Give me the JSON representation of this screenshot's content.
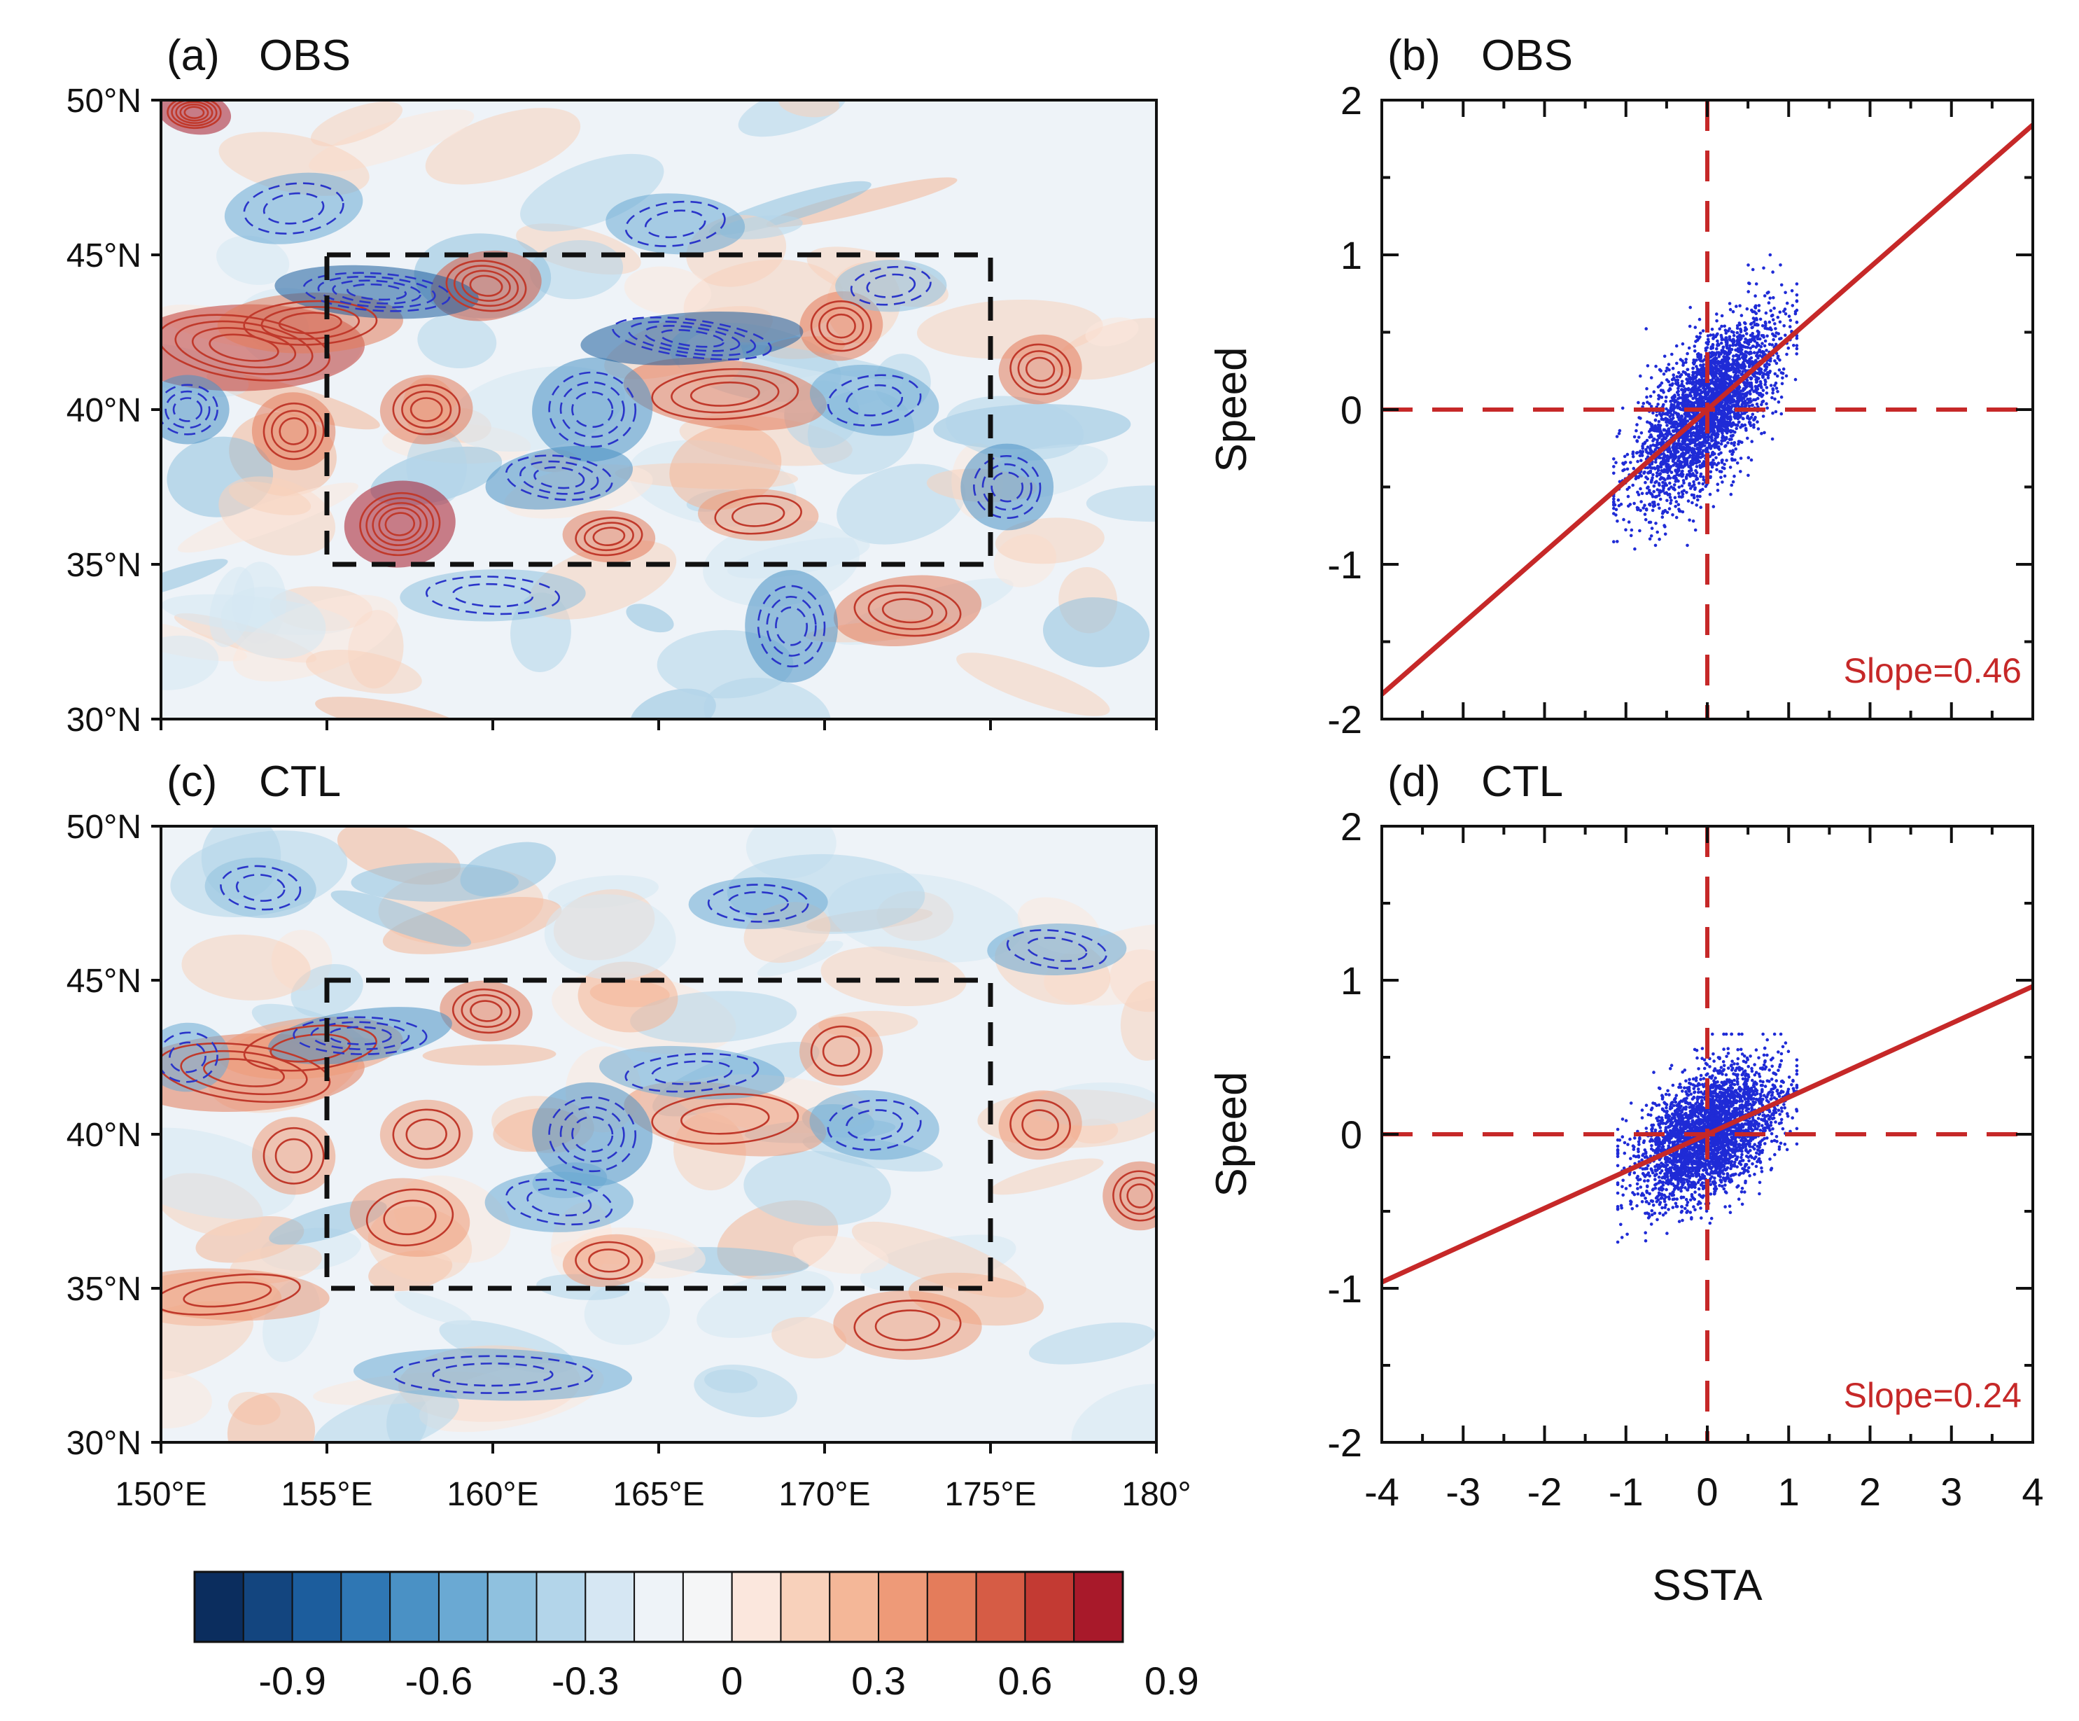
{
  "colors": {
    "positive_contour": "#c0392b",
    "negative_contour": "#2a35c9",
    "scatter_point": "#1f2bd6",
    "regression_line": "#c62828",
    "box": "#111111"
  },
  "colorbar": {
    "colors": [
      "#0b2d5e",
      "#13457f",
      "#1c5d9d",
      "#2f77b4",
      "#4a91c5",
      "#6aa9d3",
      "#8fc1df",
      "#b3d5ea",
      "#d6e7f3",
      "#eef3f8",
      "#f5f6f7",
      "#fbe7dd",
      "#f8d1bb",
      "#f4b798",
      "#ee9a78",
      "#e47c5b",
      "#d65c45",
      "#c33a33",
      "#a8192a"
    ],
    "tick_labels": [
      "-0.9",
      "-0.6",
      "-0.3",
      "0",
      "0.3",
      "0.6",
      "0.9"
    ]
  },
  "chart_data": [
    {
      "panel": "a",
      "label": "(a)",
      "title": "OBS",
      "type": "heatmap",
      "xlim": [
        150,
        180
      ],
      "ylim": [
        30,
        50
      ],
      "x_tick_values": [
        150,
        155,
        160,
        165,
        170,
        175,
        180
      ],
      "x_tick_labels": [
        "150°E",
        "155°E",
        "160°E",
        "165°E",
        "170°E",
        "175°E",
        "180°"
      ],
      "y_tick_values": [
        30,
        35,
        40,
        45,
        50
      ],
      "y_tick_labels": [
        "30°N",
        "35°N",
        "40°N",
        "45°N",
        "50°N"
      ],
      "box": {
        "lon": [
          155,
          175
        ],
        "lat": [
          35,
          45
        ]
      },
      "features": [
        {
          "lon": 152.5,
          "lat": 42.0,
          "sign": 1,
          "amp": 0.8,
          "rx": 2.6,
          "ry": 1.0
        },
        {
          "lon": 154.5,
          "lat": 42.8,
          "sign": 1,
          "amp": 0.6,
          "rx": 2.0,
          "ry": 0.7
        },
        {
          "lon": 157.2,
          "lat": 36.3,
          "sign": 1,
          "amp": 1.0,
          "rx": 1.2,
          "ry": 1.0
        },
        {
          "lon": 159.8,
          "lat": 44.0,
          "sign": 1,
          "amp": 0.7,
          "rx": 1.2,
          "ry": 0.8
        },
        {
          "lon": 158.0,
          "lat": 40.0,
          "sign": 1,
          "amp": 0.5,
          "rx": 1.0,
          "ry": 0.8
        },
        {
          "lon": 154.0,
          "lat": 39.3,
          "sign": 1,
          "amp": 0.5,
          "rx": 0.9,
          "ry": 0.9
        },
        {
          "lon": 163.5,
          "lat": 35.9,
          "sign": 1,
          "amp": 0.6,
          "rx": 1.0,
          "ry": 0.6
        },
        {
          "lon": 167.0,
          "lat": 40.5,
          "sign": 1,
          "amp": 0.6,
          "rx": 2.2,
          "ry": 0.8
        },
        {
          "lon": 170.5,
          "lat": 42.7,
          "sign": 1,
          "amp": 0.5,
          "rx": 0.9,
          "ry": 0.8
        },
        {
          "lon": 172.5,
          "lat": 33.5,
          "sign": 1,
          "amp": 0.6,
          "rx": 1.6,
          "ry": 0.8
        },
        {
          "lon": 176.5,
          "lat": 41.3,
          "sign": 1,
          "amp": 0.5,
          "rx": 0.9,
          "ry": 0.8
        },
        {
          "lon": 168.0,
          "lat": 36.6,
          "sign": 1,
          "amp": 0.4,
          "rx": 1.3,
          "ry": 0.6
        },
        {
          "lon": 151.0,
          "lat": 49.6,
          "sign": 1,
          "amp": 1.0,
          "rx": 0.8,
          "ry": 0.5
        },
        {
          "lon": 156.5,
          "lat": 43.8,
          "sign": -1,
          "amp": 0.8,
          "rx": 2.2,
          "ry": 0.6
        },
        {
          "lon": 163.0,
          "lat": 40.0,
          "sign": -1,
          "amp": 0.6,
          "rx": 1.3,
          "ry": 1.2
        },
        {
          "lon": 166.0,
          "lat": 42.3,
          "sign": -1,
          "amp": 0.8,
          "rx": 2.4,
          "ry": 0.6
        },
        {
          "lon": 150.8,
          "lat": 40.0,
          "sign": -1,
          "amp": 0.6,
          "rx": 0.9,
          "ry": 0.8
        },
        {
          "lon": 162.0,
          "lat": 37.8,
          "sign": -1,
          "amp": 0.5,
          "rx": 1.6,
          "ry": 0.7
        },
        {
          "lon": 169.0,
          "lat": 33.0,
          "sign": -1,
          "amp": 0.5,
          "rx": 1.0,
          "ry": 1.3
        },
        {
          "lon": 171.5,
          "lat": 40.3,
          "sign": -1,
          "amp": 0.4,
          "rx": 1.4,
          "ry": 0.8
        },
        {
          "lon": 175.5,
          "lat": 37.5,
          "sign": -1,
          "amp": 0.5,
          "rx": 1.0,
          "ry": 1.0
        },
        {
          "lon": 160.0,
          "lat": 34.0,
          "sign": -1,
          "amp": 0.3,
          "rx": 2.0,
          "ry": 0.6
        },
        {
          "lon": 154.0,
          "lat": 46.5,
          "sign": -1,
          "amp": 0.4,
          "rx": 1.5,
          "ry": 0.8
        },
        {
          "lon": 165.5,
          "lat": 46.0,
          "sign": -1,
          "amp": 0.4,
          "rx": 1.5,
          "ry": 0.7
        },
        {
          "lon": 172.0,
          "lat": 44.0,
          "sign": -1,
          "amp": 0.3,
          "rx": 1.2,
          "ry": 0.6
        }
      ]
    },
    {
      "panel": "b",
      "label": "(b)",
      "title": "OBS",
      "type": "scatter",
      "xlim": [
        -4,
        4
      ],
      "ylim": [
        -2,
        2
      ],
      "x_ticks": [
        -4,
        -3,
        -2,
        -1,
        0,
        1,
        2,
        3,
        4
      ],
      "x_tick_labels": [
        "-4",
        "-3",
        "-2",
        "-1",
        "0",
        "1",
        "2",
        "3",
        "4"
      ],
      "y_ticks": [
        -2,
        -1,
        0,
        1,
        2
      ],
      "y_tick_labels": [
        "-2",
        "-1",
        "0",
        "1",
        "2"
      ],
      "xlabel": "",
      "ylabel": "Speed",
      "slope": 0.46,
      "slope_text": "Slope=0.46",
      "point_count": 3200,
      "x_spread": 0.42,
      "y_noise": 0.22,
      "x_range": [
        -1.15,
        1.1
      ],
      "y_range": [
        -1.0,
        1.0
      ]
    },
    {
      "panel": "c",
      "label": "(c)",
      "title": "CTL",
      "type": "heatmap",
      "xlim": [
        150,
        180
      ],
      "ylim": [
        30,
        50
      ],
      "x_tick_values": [
        150,
        155,
        160,
        165,
        170,
        175,
        180
      ],
      "x_tick_labels": [
        "150°E",
        "155°E",
        "160°E",
        "165°E",
        "170°E",
        "175°E",
        "180°"
      ],
      "y_tick_values": [
        30,
        35,
        40,
        45,
        50
      ],
      "y_tick_labels": [
        "30°N",
        "35°N",
        "40°N",
        "45°N",
        "50°N"
      ],
      "box": {
        "lon": [
          155,
          175
        ],
        "lat": [
          35,
          45
        ]
      },
      "features": [
        {
          "lon": 152.5,
          "lat": 42.0,
          "sign": 1,
          "amp": 0.5,
          "rx": 2.6,
          "ry": 0.9
        },
        {
          "lon": 154.5,
          "lat": 42.8,
          "sign": 1,
          "amp": 0.4,
          "rx": 2.0,
          "ry": 0.7
        },
        {
          "lon": 159.8,
          "lat": 44.0,
          "sign": 1,
          "amp": 0.5,
          "rx": 1.0,
          "ry": 0.7
        },
        {
          "lon": 158.0,
          "lat": 40.0,
          "sign": 1,
          "amp": 0.4,
          "rx": 1.0,
          "ry": 0.8
        },
        {
          "lon": 154.0,
          "lat": 39.3,
          "sign": 1,
          "amp": 0.4,
          "rx": 0.9,
          "ry": 0.9
        },
        {
          "lon": 157.5,
          "lat": 37.3,
          "sign": 1,
          "amp": 0.4,
          "rx": 1.3,
          "ry": 0.9
        },
        {
          "lon": 163.5,
          "lat": 35.9,
          "sign": 1,
          "amp": 0.4,
          "rx": 1.0,
          "ry": 0.6
        },
        {
          "lon": 167.0,
          "lat": 40.5,
          "sign": 1,
          "amp": 0.4,
          "rx": 2.2,
          "ry": 0.8
        },
        {
          "lon": 170.5,
          "lat": 42.7,
          "sign": 1,
          "amp": 0.4,
          "rx": 0.9,
          "ry": 0.8
        },
        {
          "lon": 172.5,
          "lat": 33.8,
          "sign": 1,
          "amp": 0.4,
          "rx": 1.6,
          "ry": 0.8
        },
        {
          "lon": 176.5,
          "lat": 40.3,
          "sign": 1,
          "amp": 0.4,
          "rx": 0.9,
          "ry": 0.8
        },
        {
          "lon": 152.0,
          "lat": 34.8,
          "sign": 1,
          "amp": 0.4,
          "rx": 2.2,
          "ry": 0.6
        },
        {
          "lon": 179.5,
          "lat": 38.0,
          "sign": 1,
          "amp": 0.6,
          "rx": 0.8,
          "ry": 0.8
        },
        {
          "lon": 156.0,
          "lat": 43.2,
          "sign": -1,
          "amp": 0.5,
          "rx": 2.0,
          "ry": 0.6
        },
        {
          "lon": 163.0,
          "lat": 40.0,
          "sign": -1,
          "amp": 0.5,
          "rx": 1.3,
          "ry": 1.2
        },
        {
          "lon": 166.0,
          "lat": 42.0,
          "sign": -1,
          "amp": 0.4,
          "rx": 2.0,
          "ry": 0.6
        },
        {
          "lon": 150.8,
          "lat": 42.5,
          "sign": -1,
          "amp": 0.4,
          "rx": 0.9,
          "ry": 0.8
        },
        {
          "lon": 162.0,
          "lat": 37.8,
          "sign": -1,
          "amp": 0.4,
          "rx": 1.6,
          "ry": 0.7
        },
        {
          "lon": 171.5,
          "lat": 40.3,
          "sign": -1,
          "amp": 0.4,
          "rx": 1.4,
          "ry": 0.8
        },
        {
          "lon": 160.0,
          "lat": 32.2,
          "sign": -1,
          "amp": 0.4,
          "rx": 3.0,
          "ry": 0.6
        },
        {
          "lon": 168.0,
          "lat": 47.5,
          "sign": -1,
          "amp": 0.4,
          "rx": 1.5,
          "ry": 0.6
        },
        {
          "lon": 177.0,
          "lat": 46.0,
          "sign": -1,
          "amp": 0.4,
          "rx": 1.5,
          "ry": 0.6
        },
        {
          "lon": 153.0,
          "lat": 48.0,
          "sign": -1,
          "amp": 0.3,
          "rx": 1.2,
          "ry": 0.7
        }
      ]
    },
    {
      "panel": "d",
      "label": "(d)",
      "title": "CTL",
      "type": "scatter",
      "xlim": [
        -4,
        4
      ],
      "ylim": [
        -2,
        2
      ],
      "x_ticks": [
        -4,
        -3,
        -2,
        -1,
        0,
        1,
        2,
        3,
        4
      ],
      "x_tick_labels": [
        "-4",
        "-3",
        "-2",
        "-1",
        "0",
        "1",
        "2",
        "3",
        "4"
      ],
      "y_ticks": [
        -2,
        -1,
        0,
        1,
        2
      ],
      "y_tick_labels": [
        "-2",
        "-1",
        "0",
        "1",
        "2"
      ],
      "xlabel": "SSTA",
      "ylabel": "Speed",
      "slope": 0.24,
      "slope_text": "Slope=0.24",
      "point_count": 3200,
      "x_spread": 0.42,
      "y_noise": 0.19,
      "x_range": [
        -1.1,
        1.1
      ],
      "y_range": [
        -0.7,
        0.65
      ]
    }
  ]
}
